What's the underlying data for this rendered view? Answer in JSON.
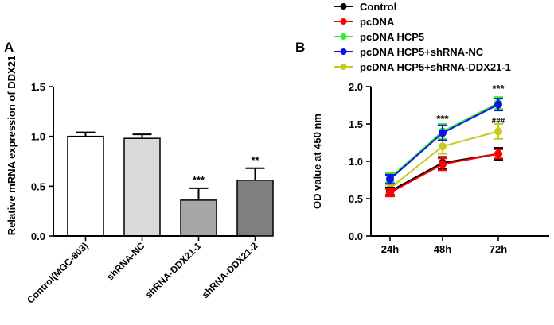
{
  "chart_data": [
    {
      "panel_label": "A",
      "type": "bar",
      "title": "",
      "xlabel": "",
      "ylabel": "Relative mRNA expression of DDX21",
      "ylim": [
        0,
        1.5
      ],
      "yticks": [
        "0.0",
        "0.5",
        "1.0",
        "1.5"
      ],
      "grid": false,
      "categories": [
        "Control(MGC-803)",
        "shRNA-NC",
        "shRNA-DDX21-1",
        "shRNA-DDX21-2"
      ],
      "values": [
        1.0,
        0.98,
        0.36,
        0.56
      ],
      "errors": [
        0.04,
        0.04,
        0.12,
        0.12
      ],
      "bar_colors": [
        "#ffffff",
        "#d9d9d9",
        "#a6a6a6",
        "#7f7f7f"
      ],
      "annotations": [
        "",
        "",
        "***",
        "**"
      ]
    },
    {
      "panel_label": "B",
      "type": "line",
      "title": "",
      "xlabel": "",
      "ylabel": "OD value at 450 nm",
      "ylim": [
        0,
        2.0
      ],
      "yticks": [
        "0.0",
        "0.5",
        "1.0",
        "1.5",
        "2.0"
      ],
      "grid": false,
      "x": [
        "24h",
        "48h",
        "72h"
      ],
      "legend_position": "top-center",
      "series": [
        {
          "name": "Control",
          "color": "#000000",
          "values": [
            0.6,
            0.98,
            1.1
          ],
          "errors": [
            0.05,
            0.08,
            0.08
          ]
        },
        {
          "name": "pcDNA",
          "color": "#ff0000",
          "values": [
            0.58,
            0.96,
            1.1
          ],
          "errors": [
            0.05,
            0.08,
            0.06
          ]
        },
        {
          "name": "pcDNA HCP5",
          "color": "#33ee33",
          "values": [
            0.78,
            1.4,
            1.78
          ],
          "errors": [
            0.06,
            0.1,
            0.08
          ]
        },
        {
          "name": "pcDNA HCP5+shRNA-NC",
          "color": "#1010ee",
          "values": [
            0.76,
            1.38,
            1.76
          ],
          "errors": [
            0.06,
            0.1,
            0.08
          ]
        },
        {
          "name": "pcDNA HCP5+shRNA-DDX21-1",
          "color": "#c8c81e",
          "values": [
            0.64,
            1.2,
            1.4
          ],
          "errors": [
            0.05,
            0.1,
            0.1
          ]
        }
      ],
      "annotations": [
        {
          "x": "48h",
          "text": "***"
        },
        {
          "x": "72h",
          "text": "***"
        },
        {
          "x": "72h",
          "text": "###"
        }
      ]
    }
  ]
}
